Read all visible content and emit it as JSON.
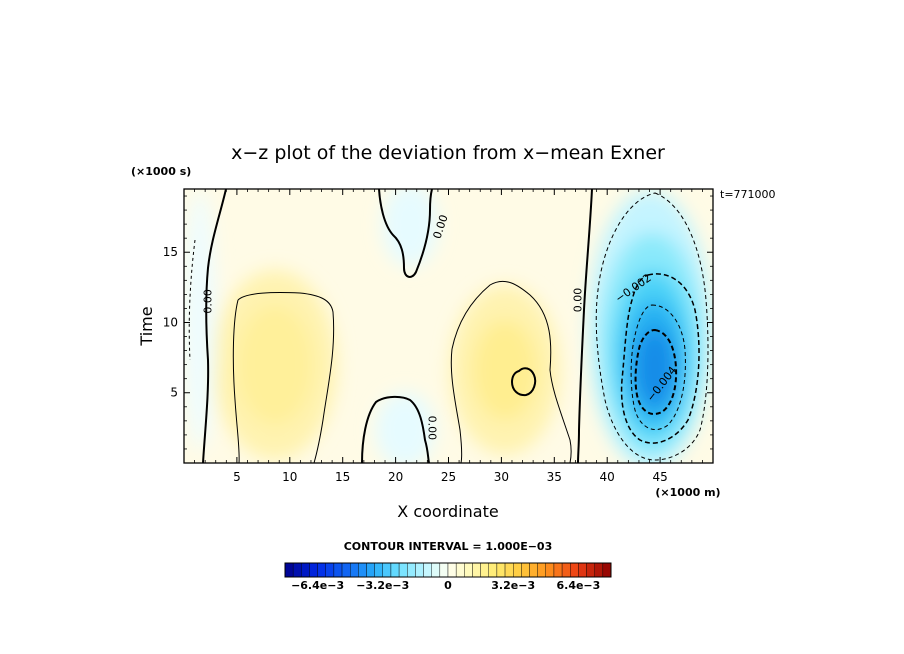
{
  "chart_data": {
    "type": "heatmap",
    "title": "x−z plot of the deviation from x−mean Exner",
    "xlabel": "X coordinate",
    "ylabel": "Time",
    "x_unit": "(×1000 m)",
    "y_unit": "(×1000 s)",
    "time_stamp": "t=771000",
    "xlim": [
      0,
      50
    ],
    "ylim": [
      0,
      19.5
    ],
    "x_ticks": [
      "5",
      "10",
      "15",
      "20",
      "25",
      "30",
      "35",
      "40",
      "45"
    ],
    "y_ticks": [
      "5",
      "10",
      "15"
    ],
    "contour_interval_text": "CONTOUR INTERVAL = 1.000E−03",
    "contour_interval": 0.001,
    "contour_labels": [
      {
        "text": "0.00",
        "x": 2.3,
        "y": 11.5,
        "angle": -90
      },
      {
        "text": "0.00",
        "x": 24.3,
        "y": 16.8,
        "angle": -72
      },
      {
        "text": "0.00",
        "x": 23.4,
        "y": 2.5,
        "angle": 90
      },
      {
        "text": "0.00",
        "x": 37.3,
        "y": 11.6,
        "angle": -90
      },
      {
        "text": "−0.002",
        "x": 42.5,
        "y": 12.4,
        "angle": -35
      },
      {
        "text": "−0.004",
        "x": 45.2,
        "y": 5.6,
        "angle": -52
      }
    ],
    "field_extrema": [
      {
        "x": 8,
        "y": 6.5,
        "value": 0.0014
      },
      {
        "x": 31.5,
        "y": 6.2,
        "value": 0.0018
      },
      {
        "x": 44.6,
        "y": 6.2,
        "value": -0.0058
      },
      {
        "x": 21.5,
        "y": 2.5,
        "value": -0.0003
      },
      {
        "x": 21.5,
        "y": 17,
        "value": -0.0003
      }
    ],
    "colorbar": {
      "min": -0.008,
      "max": 0.008,
      "step": 0.0004,
      "tick_labels": [
        "−6.4e−3",
        "−3.2e−3",
        "0",
        "3.2e−3",
        "6.4e−3"
      ],
      "tick_values": [
        -0.0064,
        -0.0032,
        0,
        0.0032,
        0.0064
      ]
    }
  }
}
